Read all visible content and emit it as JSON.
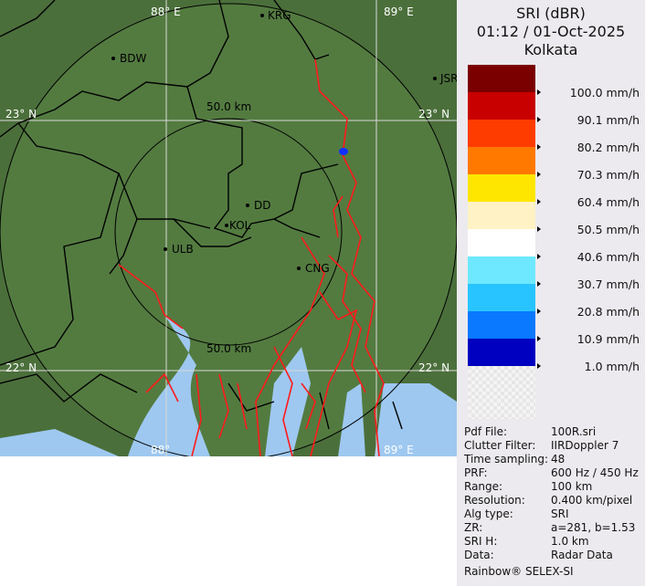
{
  "panel": {
    "product": "SRI (dBR)",
    "datetime": "01:12 / 01-Oct-2025",
    "site": "Kolkata",
    "legend": [
      {
        "label": "100.0 mm/h",
        "color": "#7a0000"
      },
      {
        "label": "90.1 mm/h",
        "color": "#c80000"
      },
      {
        "label": "80.2 mm/h",
        "color": "#ff3c00"
      },
      {
        "label": "70.3 mm/h",
        "color": "#ff7800"
      },
      {
        "label": "60.4 mm/h",
        "color": "#ffe600"
      },
      {
        "label": "50.5 mm/h",
        "color": "#fff2c4"
      },
      {
        "label": "40.6 mm/h",
        "color": "#ffffff"
      },
      {
        "label": "30.7 mm/h",
        "color": "#6ee8ff"
      },
      {
        "label": "20.8 mm/h",
        "color": "#28c4ff"
      },
      {
        "label": "10.9 mm/h",
        "color": "#0a78ff"
      },
      {
        "label": "1.0 mm/h",
        "color": "#0000c0"
      }
    ],
    "info": [
      {
        "key": "Pdf File:",
        "value": "100R.sri"
      },
      {
        "key": "Clutter Filter:",
        "value": "IIRDoppler 7"
      },
      {
        "key": "Time sampling:",
        "value": "48"
      },
      {
        "key": "PRF:",
        "value": "600 Hz / 450 Hz"
      },
      {
        "key": "Range:",
        "value": "100 km"
      },
      {
        "key": "Resolution:",
        "value": "0.400 km/pixel"
      },
      {
        "key": "Alg type:",
        "value": "SRI"
      },
      {
        "key": "ZR:",
        "value": "a=281, b=1.53"
      },
      {
        "key": "SRI H:",
        "value": "1.0 km"
      },
      {
        "key": "Data:",
        "value": "Radar Data"
      }
    ],
    "footer": "Rainbow® SELEX-SI"
  },
  "map": {
    "grid": {
      "lon_top_1": "88° E",
      "lon_top_2": "89° E",
      "lon_bot_1": "88°",
      "lon_bot_2": "89° E",
      "lat_1_left": "23° N",
      "lat_1_right": "23° N",
      "lat_2_left": "22° N",
      "lat_2_right": "22° N"
    },
    "rings": {
      "inner_top": "50.0 km",
      "inner_bottom": "50.0 km"
    },
    "cities": [
      "KRG",
      "BDW",
      "JSR",
      "DD",
      "KOL",
      "ULB",
      "CNG"
    ]
  }
}
